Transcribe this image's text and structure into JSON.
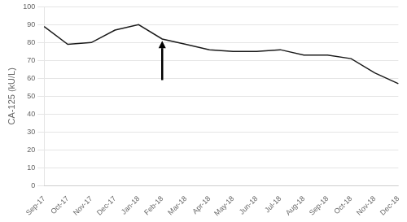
{
  "chart_data": {
    "type": "line",
    "categories": [
      "Sep-17",
      "Oct-17",
      "Nov-17",
      "Dec-17",
      "Jan-18",
      "Feb-18",
      "Mar-18",
      "Apr-18",
      "May-18",
      "Jun-18",
      "Jul-18",
      "Aug-18",
      "Sep-18",
      "Oct-18",
      "Nov-18",
      "Dec-18"
    ],
    "values": [
      89,
      79,
      80,
      87,
      90,
      82,
      79,
      76,
      75,
      75,
      76,
      73,
      73,
      71,
      63,
      57
    ],
    "color": "#1a1a1a",
    "y_label": "CA-125 (kU/L)",
    "ylim": [
      0,
      100
    ],
    "yticks": [
      0,
      10,
      20,
      30,
      40,
      50,
      60,
      70,
      80,
      90,
      100
    ],
    "grid": true,
    "annotations": [
      {
        "x": "Feb-18",
        "y_start": 59,
        "y_end": 81
      }
    ]
  }
}
